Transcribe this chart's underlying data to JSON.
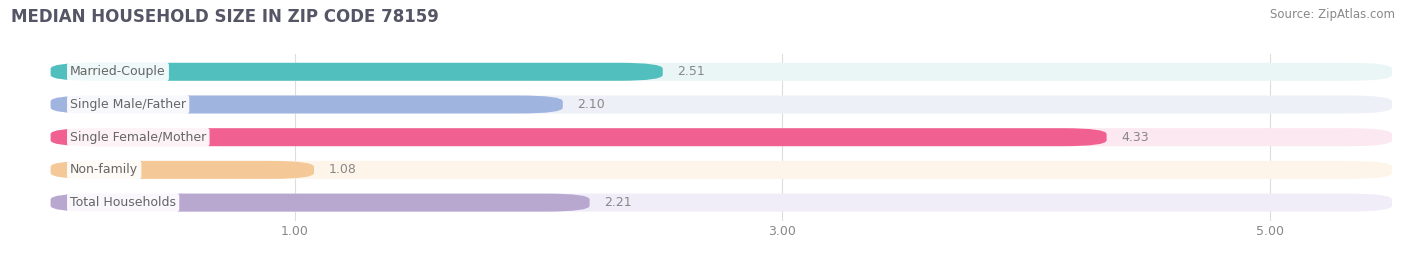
{
  "title": "MEDIAN HOUSEHOLD SIZE IN ZIP CODE 78159",
  "source": "Source: ZipAtlas.com",
  "categories": [
    "Married-Couple",
    "Single Male/Father",
    "Single Female/Mother",
    "Non-family",
    "Total Households"
  ],
  "values": [
    2.51,
    2.1,
    4.33,
    1.08,
    2.21
  ],
  "bar_colors": [
    "#52bfbf",
    "#a0b4e0",
    "#f06090",
    "#f5c898",
    "#b8a8d0"
  ],
  "bar_bg_colors": [
    "#eaf6f6",
    "#eef0f8",
    "#fce8f0",
    "#fef5ea",
    "#f0ecf8"
  ],
  "xlim_left": -0.15,
  "xlim_right": 5.5,
  "xticks": [
    1.0,
    3.0,
    5.0
  ],
  "title_fontsize": 12,
  "source_fontsize": 8.5,
  "label_fontsize": 9,
  "value_fontsize": 9,
  "bar_height": 0.55,
  "background_color": "#ffffff",
  "grid_color": "#dddddd",
  "text_color": "#666666",
  "value_color": "#888888",
  "title_color": "#555566"
}
